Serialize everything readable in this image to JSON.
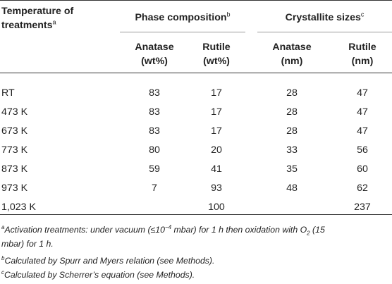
{
  "header": {
    "col_temp_line1": "Temperature of",
    "col_temp_line2": "treatments",
    "col_temp_sup": "a",
    "group_phase": "Phase composition",
    "group_phase_sup": "b",
    "group_size": "Crystallite sizes",
    "group_size_sup": "c",
    "sub_anatase_wt_line1": "Anatase",
    "sub_anatase_wt_line2": "(wt%)",
    "sub_rutile_wt_line1": "Rutile",
    "sub_rutile_wt_line2": "(wt%)",
    "sub_anatase_nm_line1": "Anatase",
    "sub_anatase_nm_line2": "(nm)",
    "sub_rutile_nm_line1": "Rutile",
    "sub_rutile_nm_line2": "(nm)"
  },
  "rows": [
    {
      "temp": "RT",
      "anatase_wt": "83",
      "rutile_wt": "17",
      "anatase_nm": "28",
      "rutile_nm": "47"
    },
    {
      "temp": "473 K",
      "anatase_wt": "83",
      "rutile_wt": "17",
      "anatase_nm": "28",
      "rutile_nm": "47"
    },
    {
      "temp": "673 K",
      "anatase_wt": "83",
      "rutile_wt": "17",
      "anatase_nm": "28",
      "rutile_nm": "47"
    },
    {
      "temp": "773 K",
      "anatase_wt": "80",
      "rutile_wt": "20",
      "anatase_nm": "33",
      "rutile_nm": "56"
    },
    {
      "temp": "873 K",
      "anatase_wt": "59",
      "rutile_wt": "41",
      "anatase_nm": "35",
      "rutile_nm": "60"
    },
    {
      "temp": "973 K",
      "anatase_wt": "7",
      "rutile_wt": "93",
      "anatase_nm": "48",
      "rutile_nm": "62"
    },
    {
      "temp": "1,023 K",
      "anatase_wt": "",
      "rutile_wt": "100",
      "anatase_nm": "",
      "rutile_nm": "237"
    }
  ],
  "footnotes": {
    "a_mark": "a",
    "a_text1": "Activation treatments: under vacuum (≤10",
    "a_exp": "−4",
    "a_text2": " mbar) for 1 h then oxidation with O",
    "a_sub": "2",
    "a_text3": " (15",
    "a_text4": "mbar) for 1 h.",
    "b_mark": "b",
    "b_text": "Calculated by Spurr and Myers relation (see Methods).",
    "c_mark": "c",
    "c_text": "Calculated by Scherrer’s equation (see Methods)."
  }
}
